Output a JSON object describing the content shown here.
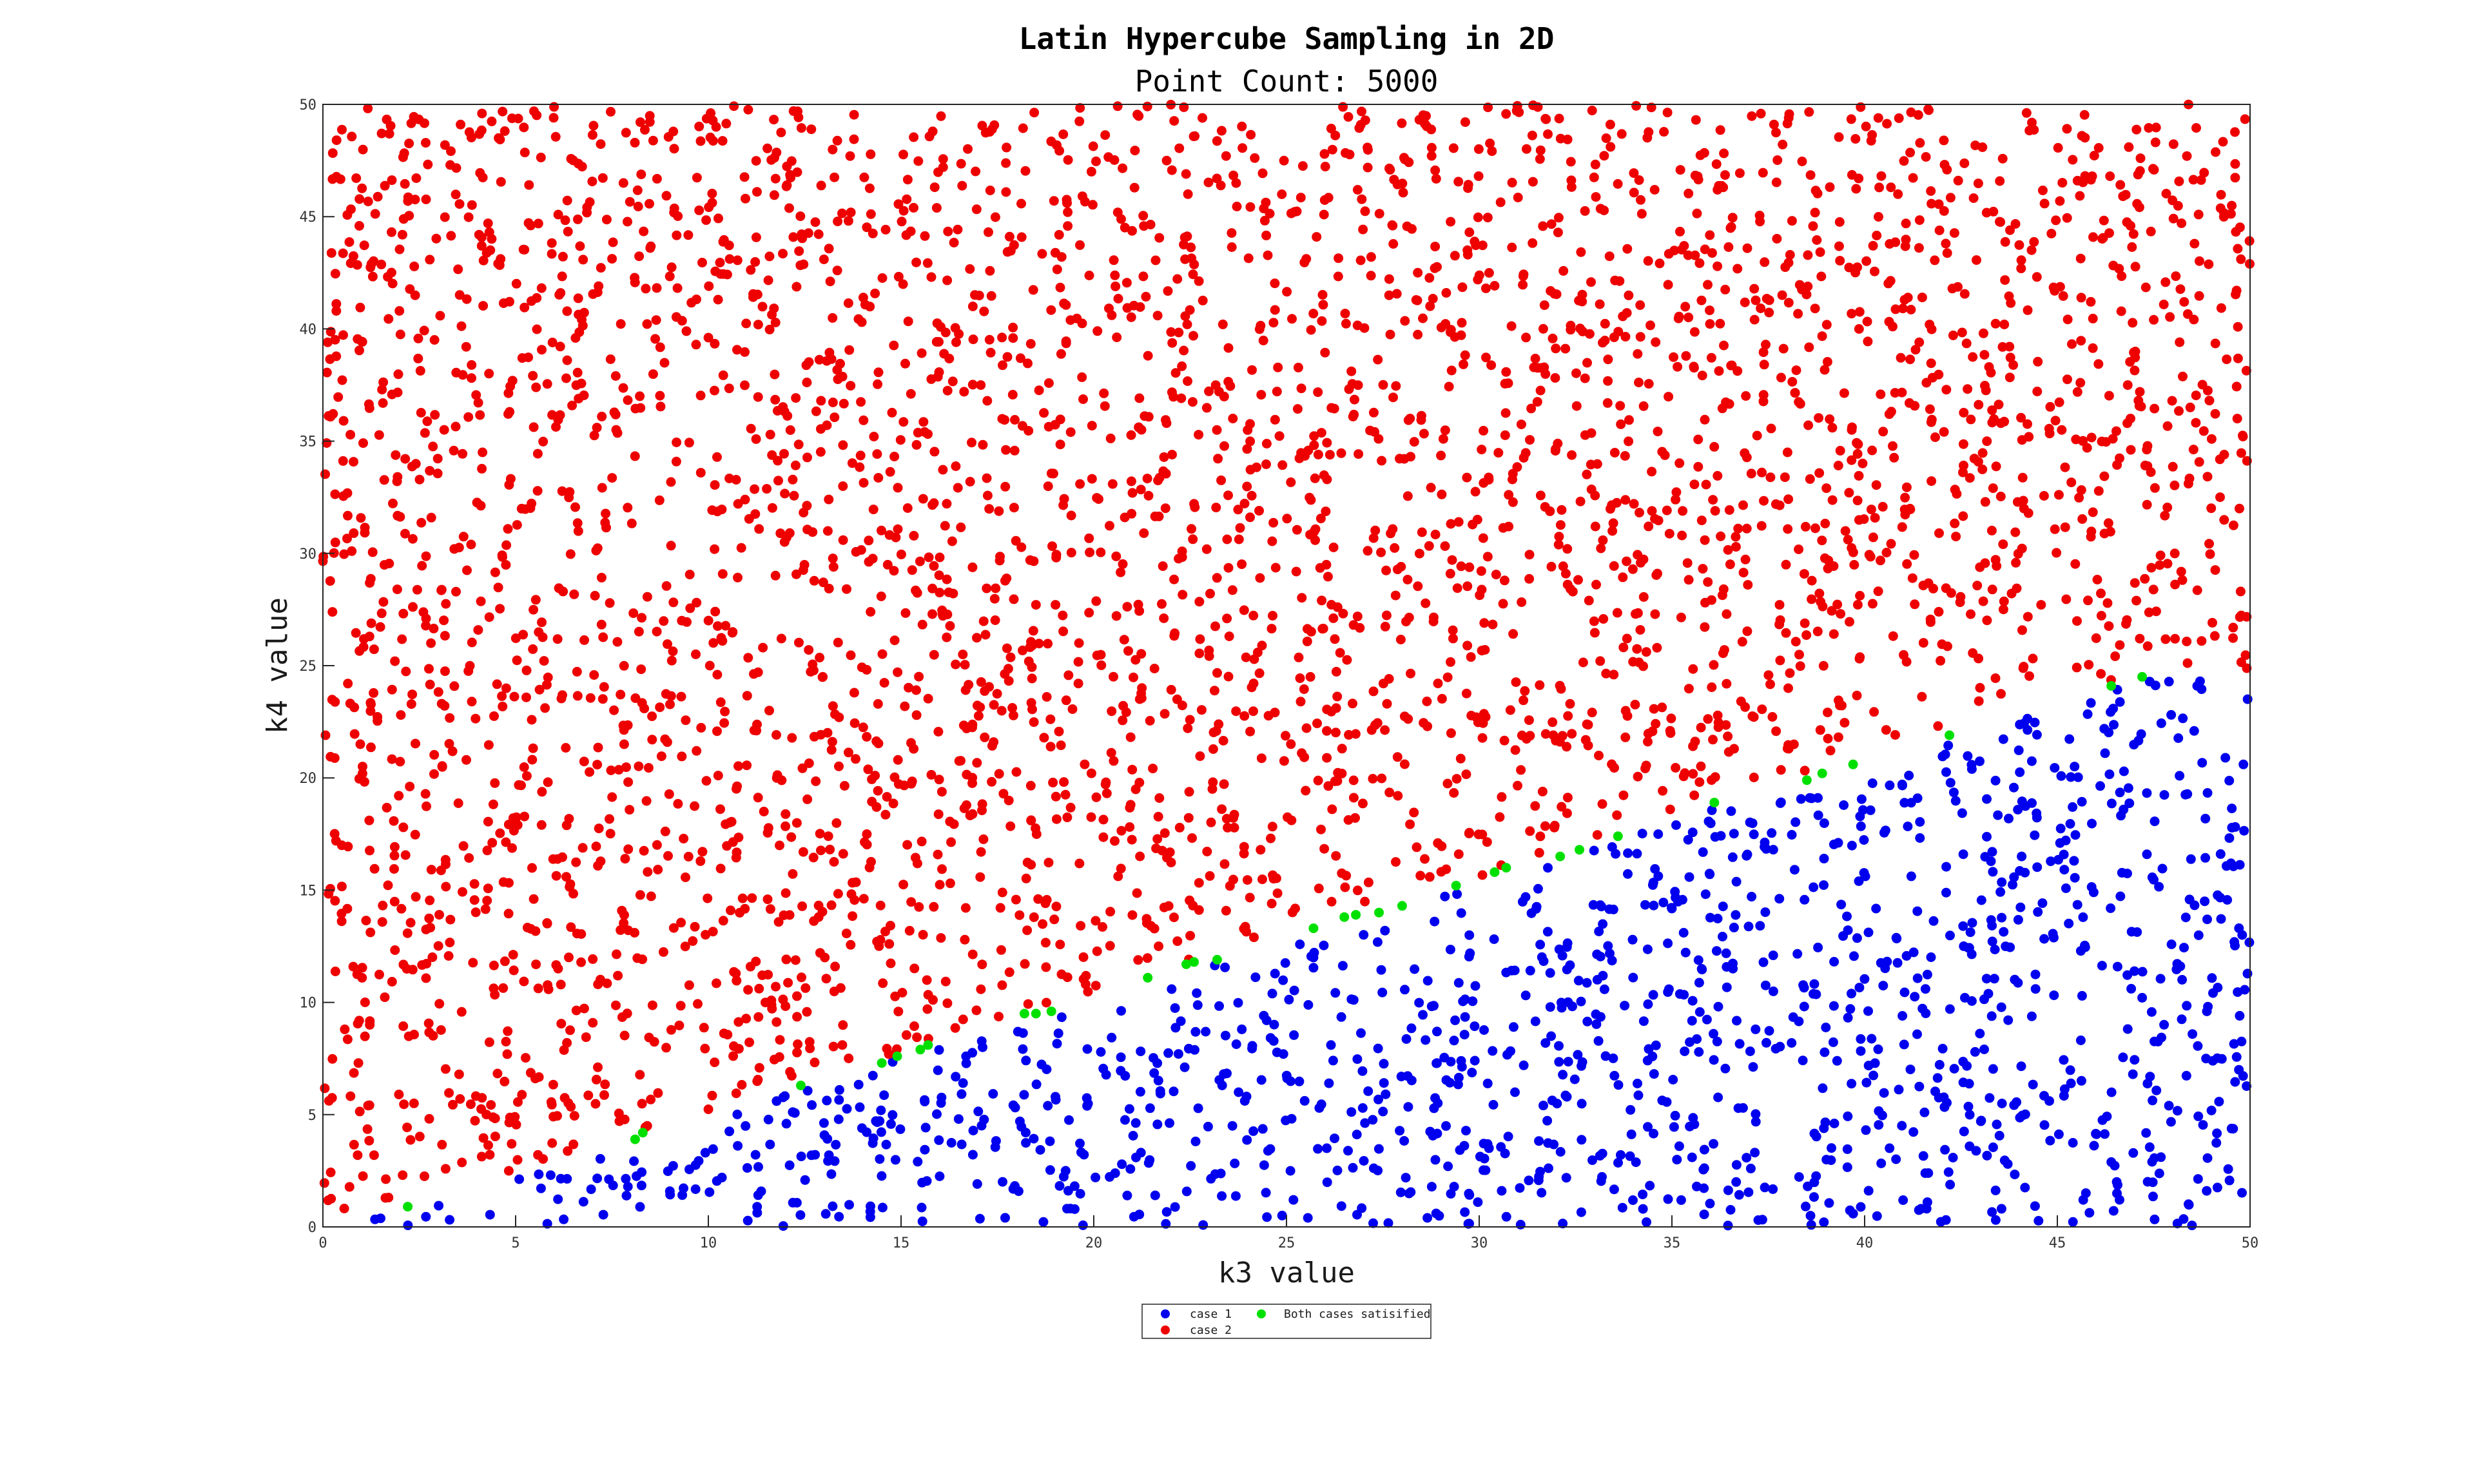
{
  "chart_data": {
    "type": "scatter",
    "title": "Latin Hypercube Sampling in 2D",
    "subtitle": "Point Count: 5000",
    "xlabel": "k3 value",
    "ylabel": "k4 value",
    "xlim": [
      0,
      50
    ],
    "ylim": [
      0,
      50
    ],
    "xticks": [
      "0",
      "5",
      "10",
      "15",
      "20",
      "25",
      "30",
      "35",
      "40",
      "45",
      "50"
    ],
    "yticks": [
      "0",
      "5",
      "10",
      "15",
      "20",
      "25",
      "30",
      "35",
      "40",
      "45",
      "50"
    ],
    "grid": false,
    "legend_position": "bottom-center",
    "series": [
      {
        "name": "case 1",
        "color": "#0000ee",
        "region": "below boundary",
        "approx_count": 1200
      },
      {
        "name": "case 2",
        "color": "#ee0000",
        "region": "above boundary",
        "approx_count": 3766
      },
      {
        "name": "Both cases satisified",
        "color": "#00e000",
        "region": "on boundary",
        "points": [
          [
            2.2,
            0.9
          ],
          [
            8.1,
            3.9
          ],
          [
            8.3,
            4.2
          ],
          [
            12.4,
            6.3
          ],
          [
            14.5,
            7.3
          ],
          [
            14.9,
            7.6
          ],
          [
            15.5,
            7.9
          ],
          [
            15.7,
            8.1
          ],
          [
            18.2,
            9.5
          ],
          [
            18.5,
            9.5
          ],
          [
            18.9,
            9.6
          ],
          [
            21.4,
            11.1
          ],
          [
            22.4,
            11.7
          ],
          [
            22.6,
            11.8
          ],
          [
            23.2,
            11.9
          ],
          [
            25.7,
            13.3
          ],
          [
            26.5,
            13.8
          ],
          [
            26.8,
            13.9
          ],
          [
            27.4,
            14.0
          ],
          [
            28.0,
            14.3
          ],
          [
            29.4,
            15.2
          ],
          [
            30.4,
            15.8
          ],
          [
            30.7,
            16.0
          ],
          [
            32.1,
            16.5
          ],
          [
            32.6,
            16.8
          ],
          [
            33.6,
            17.4
          ],
          [
            36.1,
            18.9
          ],
          [
            38.5,
            19.9
          ],
          [
            38.9,
            20.2
          ],
          [
            39.7,
            20.6
          ],
          [
            42.2,
            21.9
          ],
          [
            46.4,
            24.1
          ],
          [
            47.2,
            24.5
          ]
        ]
      }
    ],
    "boundary": [
      [
        2.0,
        0.9
      ],
      [
        8.2,
        4.0
      ],
      [
        12.4,
        6.3
      ],
      [
        15.6,
        8.0
      ],
      [
        18.5,
        9.5
      ],
      [
        22.5,
        11.7
      ],
      [
        26.7,
        13.9
      ],
      [
        29.5,
        15.2
      ],
      [
        32.5,
        16.7
      ],
      [
        36.1,
        18.9
      ],
      [
        39.7,
        20.6
      ],
      [
        42.2,
        21.9
      ],
      [
        47.2,
        24.5
      ],
      [
        50,
        24.5
      ]
    ],
    "random_seed": 5000
  }
}
